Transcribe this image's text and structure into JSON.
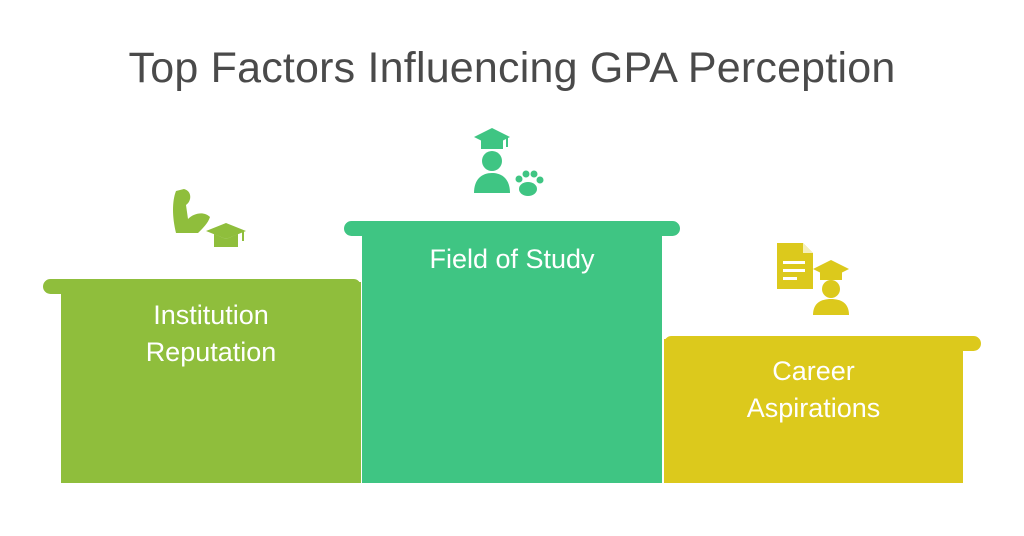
{
  "title": "Top Factors Influencing GPA Perception",
  "steps": [
    {
      "line1": "Institution",
      "line2": "Reputation",
      "color": "#8fbe3c",
      "icon": "arm-graduation-cap-icon"
    },
    {
      "line1": "Field of Study",
      "color": "#3fc583",
      "icon": "graduate-paw-icon"
    },
    {
      "line1": "Career",
      "line2": "Aspirations",
      "color": "#dcc91c",
      "icon": "document-graduate-icon"
    }
  ]
}
